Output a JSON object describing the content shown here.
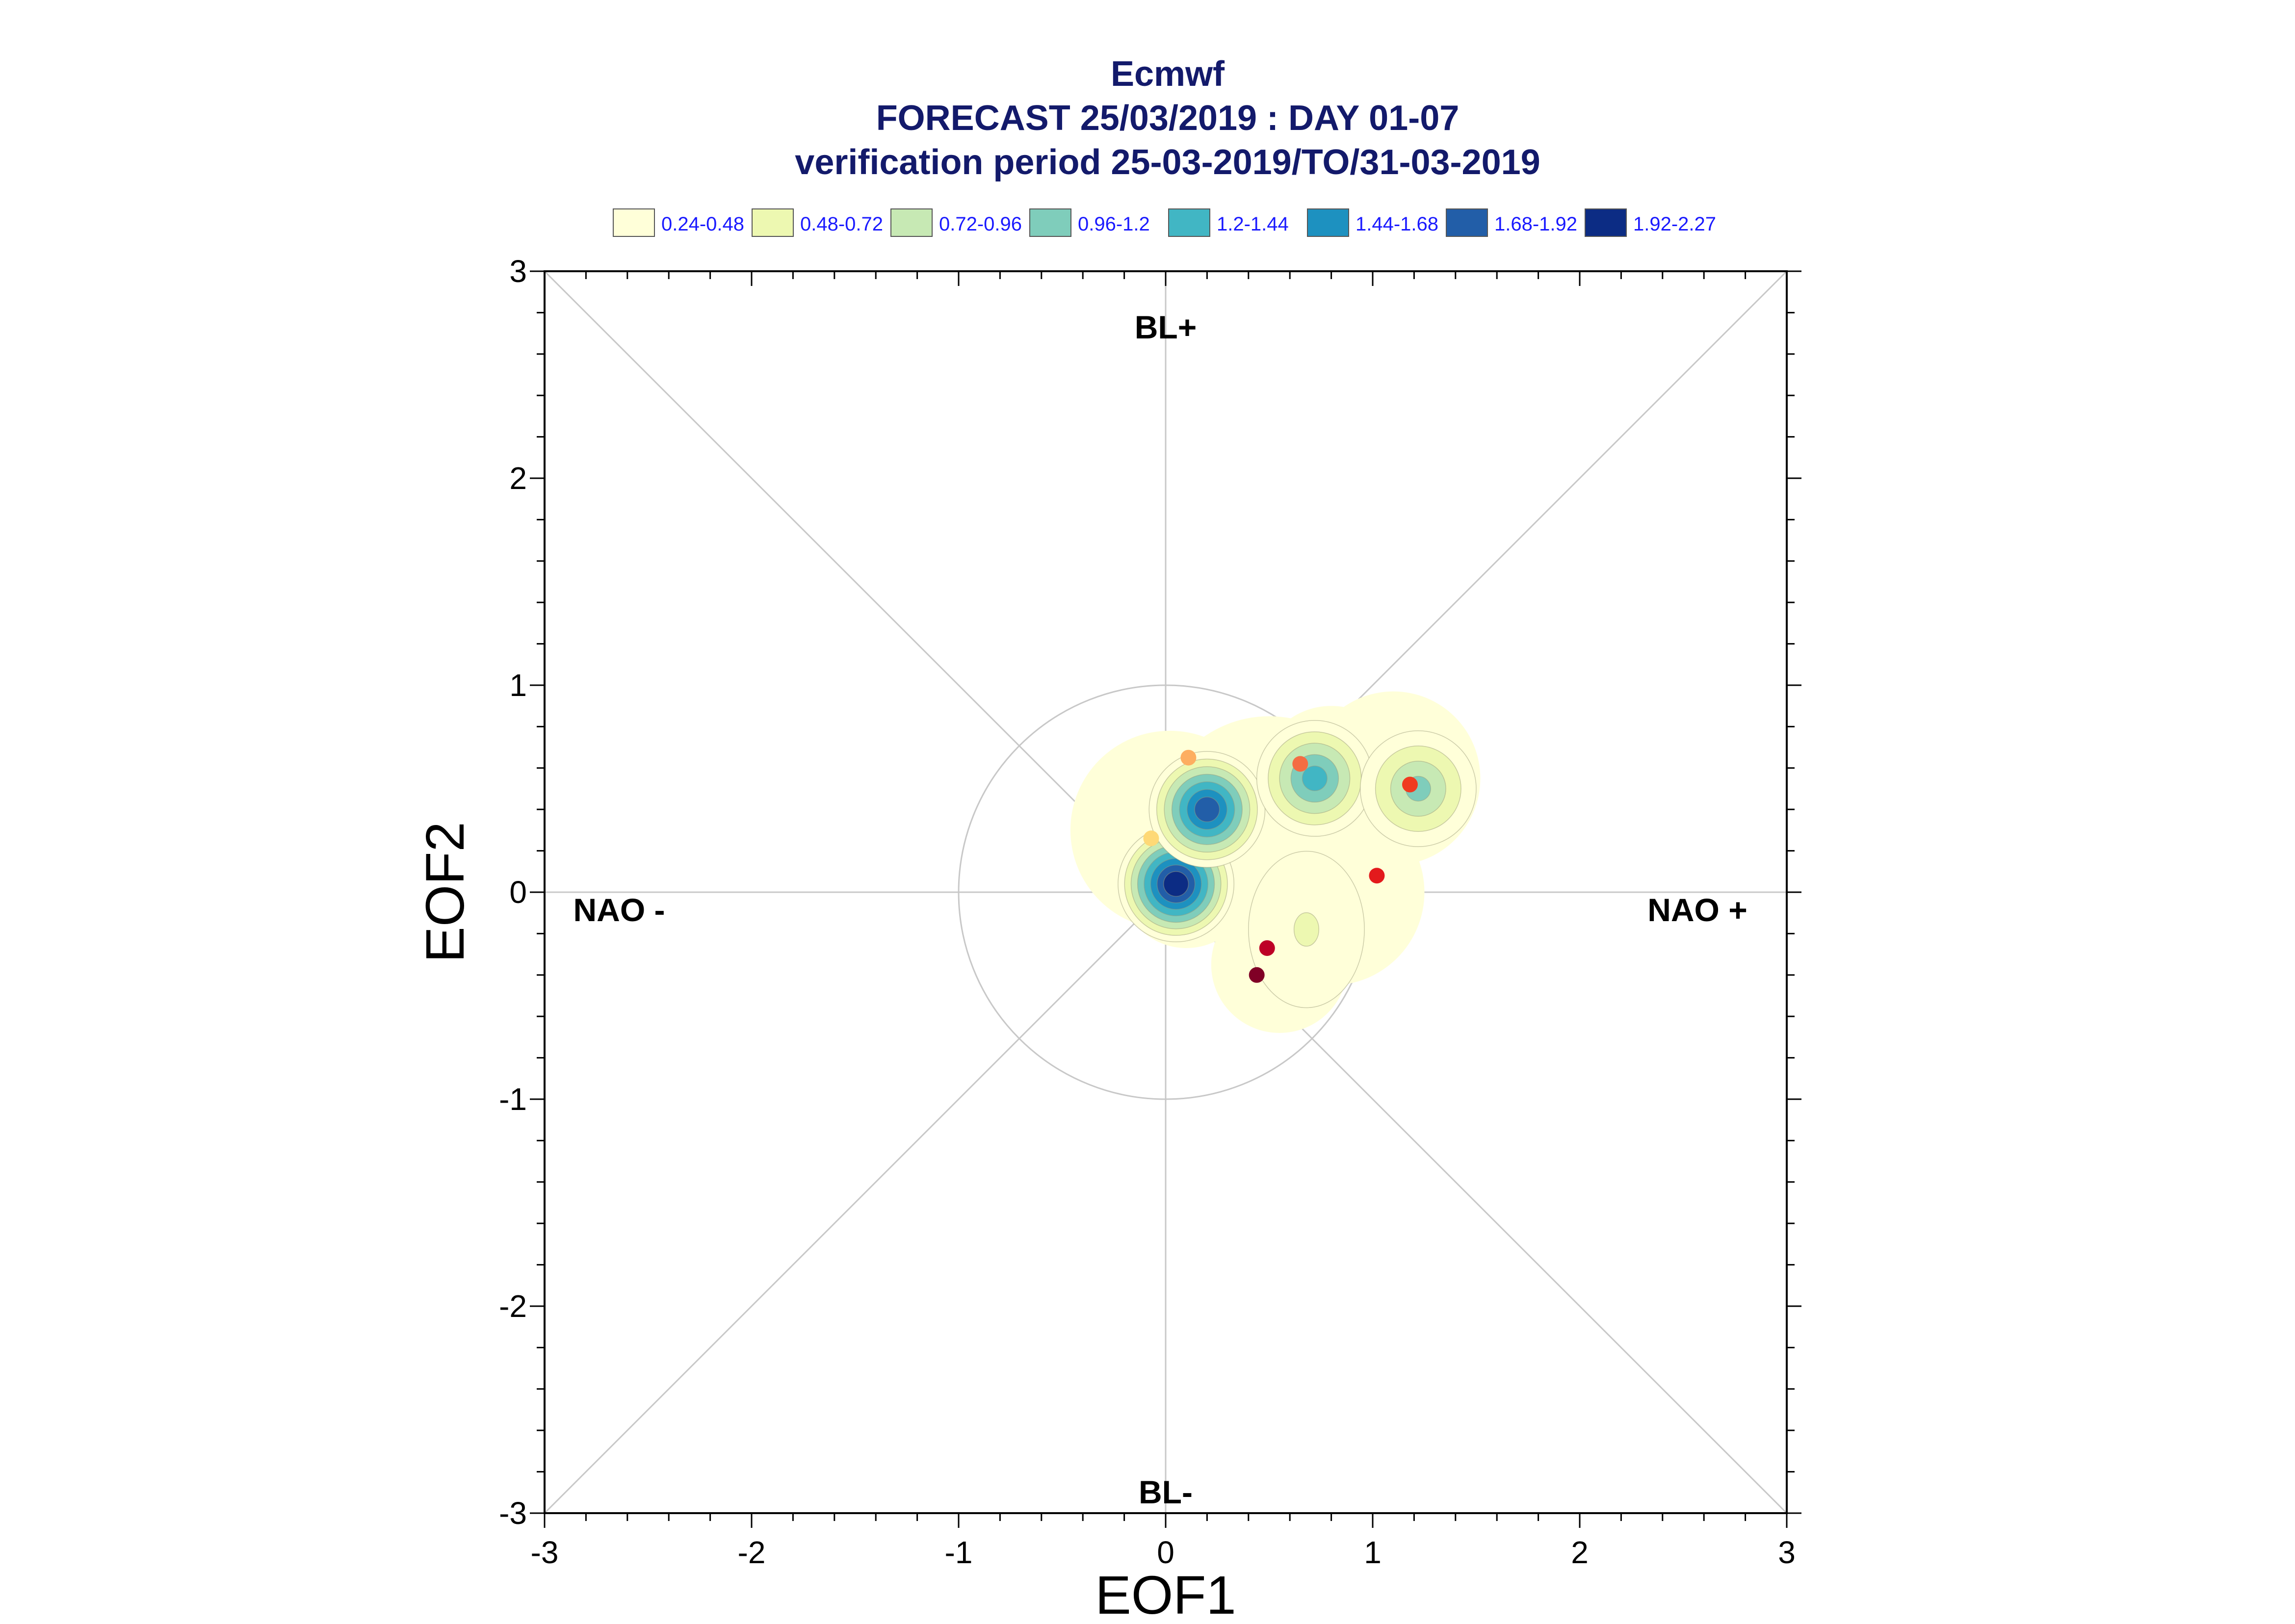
{
  "chart_data": {
    "type": "scatter",
    "title_lines": [
      "Ecmwf",
      "FORECAST 25/03/2019 : DAY 01-07",
      "verification period 25-03-2019/TO/31-03-2019"
    ],
    "xlabel": "EOF1",
    "ylabel": "EOF2",
    "xlim": [
      -3,
      3
    ],
    "ylim": [
      -3,
      3
    ],
    "x_ticks": [
      "-3",
      "-2",
      "-1",
      "0",
      "1",
      "2",
      "3"
    ],
    "y_ticks": [
      "3",
      "2",
      "1",
      "0",
      "-1",
      "-2",
      "-3"
    ],
    "regime_labels": {
      "top": "BL+",
      "bottom": "BL-",
      "left": "NAO -",
      "right": "NAO +"
    },
    "legend": [
      {
        "label": "0.24-0.48",
        "color": "#ffffd9"
      },
      {
        "label": "0.48-0.72",
        "color": "#edf8b1"
      },
      {
        "label": "0.72-0.96",
        "color": "#c7e9b4"
      },
      {
        "label": "0.96-1.2",
        "color": "#7fcdbb"
      },
      {
        "label": "1.2-1.44",
        "color": "#41b6c4"
      },
      {
        "label": "1.44-1.68",
        "color": "#1d91c0"
      },
      {
        "label": "1.68-1.92",
        "color": "#225ea8"
      },
      {
        "label": "1.92-2.27",
        "color": "#0c2c84"
      }
    ],
    "grid": true,
    "unit_circle_radius": 1,
    "density_peaks": [
      {
        "x": 0.05,
        "y": 0.04,
        "peak_level": 7
      },
      {
        "x": 0.2,
        "y": 0.4,
        "peak_level": 6
      },
      {
        "x": 0.72,
        "y": 0.55,
        "peak_level": 4
      },
      {
        "x": 1.22,
        "y": 0.5,
        "peak_level": 3
      },
      {
        "x": 0.68,
        "y": -0.18,
        "peak_level": 1
      }
    ],
    "points": [
      {
        "x": 0.11,
        "y": 0.65,
        "color": "#fdae61"
      },
      {
        "x": -0.07,
        "y": 0.26,
        "color": "#fed976"
      },
      {
        "x": 0.65,
        "y": 0.62,
        "color": "#f46d43"
      },
      {
        "x": 1.18,
        "y": 0.52,
        "color": "#f03b20"
      },
      {
        "x": 1.02,
        "y": 0.08,
        "color": "#e31a1c"
      },
      {
        "x": 0.49,
        "y": -0.27,
        "color": "#bd0026"
      },
      {
        "x": 0.44,
        "y": -0.4,
        "color": "#800026"
      }
    ]
  }
}
